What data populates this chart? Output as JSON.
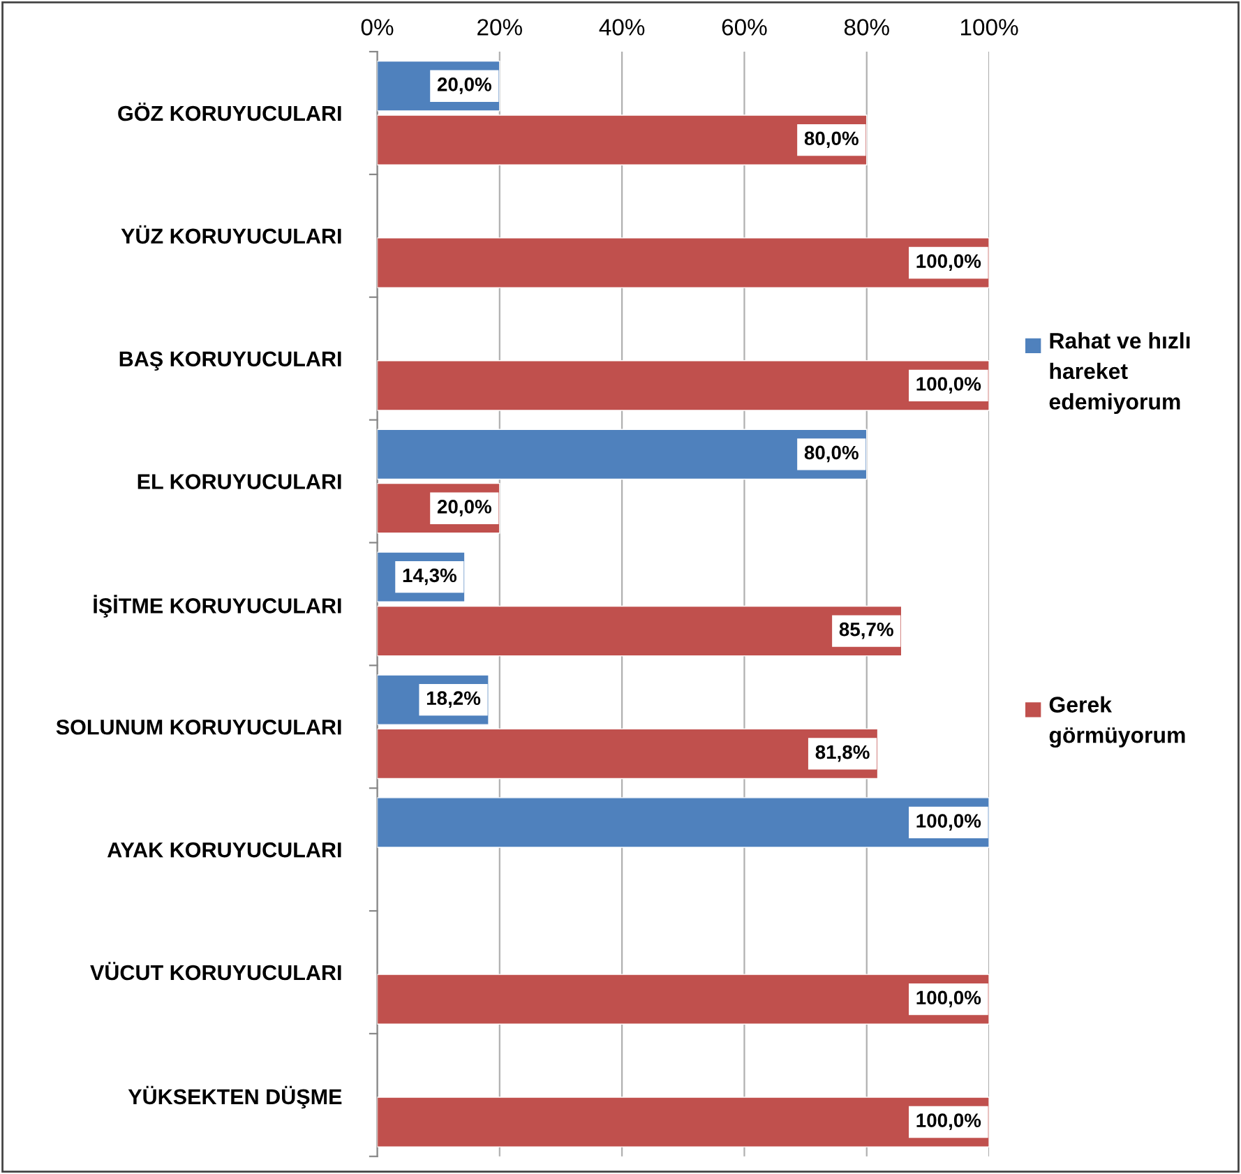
{
  "chart_data": {
    "type": "bar",
    "orientation": "horizontal",
    "categories": [
      "GÖZ KORUYUCULARI",
      "YÜZ KORUYUCULARI",
      "BAŞ KORUYUCULARI",
      "EL KORUYUCULARI",
      "İŞİTME KORUYUCULARI",
      "SOLUNUM KORUYUCULARI",
      "AYAK KORUYUCULARI",
      "VÜCUT KORUYUCULARI",
      "YÜKSEKTEN DÜŞME"
    ],
    "series": [
      {
        "name": "Rahat ve hızlı hareket edemiyorum",
        "color": "#4f81bd",
        "values": [
          20.0,
          null,
          null,
          80.0,
          14.3,
          18.2,
          100.0,
          null,
          null
        ],
        "value_labels": [
          "20,0%",
          null,
          null,
          "80,0%",
          "14,3%",
          "18,2%",
          "100,0%",
          null,
          null
        ]
      },
      {
        "name": "Gerek görmüyorum",
        "color": "#c0504d",
        "values": [
          80.0,
          100.0,
          100.0,
          20.0,
          85.7,
          81.8,
          null,
          100.0,
          100.0
        ],
        "value_labels": [
          "80,0%",
          "100,0%",
          "100,0%",
          "20,0%",
          "85,7%",
          "81,8%",
          null,
          "100,0%",
          "100,0%"
        ]
      }
    ],
    "xlim": [
      0,
      100
    ],
    "xticks": [
      {
        "value": 0,
        "label": "0%"
      },
      {
        "value": 20,
        "label": "20%"
      },
      {
        "value": 40,
        "label": "40%"
      },
      {
        "value": 60,
        "label": "60%"
      },
      {
        "value": 80,
        "label": "80%"
      },
      {
        "value": 100,
        "label": "100%"
      }
    ],
    "grid": "x",
    "legend": "right"
  }
}
